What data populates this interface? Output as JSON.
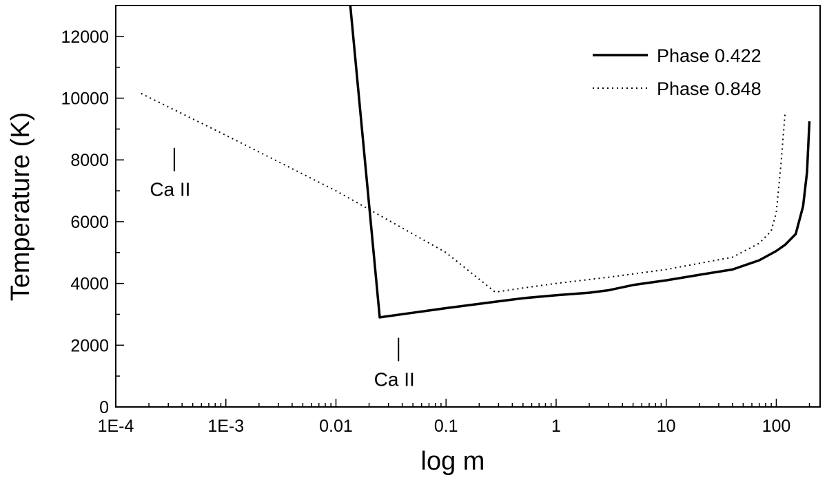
{
  "chart_data": {
    "type": "line",
    "xlabel": "log m",
    "ylabel": "Temperature (K)",
    "x_scale": "log",
    "xlim": [
      0.0001,
      250
    ],
    "ylim": [
      0,
      13000
    ],
    "grid": false,
    "legend_position": "top-right",
    "x_tick_labels": [
      "1E-4",
      "1E-3",
      "0.01",
      "0.1",
      "1",
      "10",
      "100"
    ],
    "x_tick_values": [
      0.0001,
      0.001,
      0.01,
      0.1,
      1,
      10,
      100
    ],
    "y_tick_labels": [
      "0",
      "2000",
      "4000",
      "6000",
      "8000",
      "10000",
      "12000"
    ],
    "y_tick_values": [
      0,
      2000,
      4000,
      6000,
      8000,
      10000,
      12000
    ],
    "series": [
      {
        "name": "Phase 0.422",
        "line_style": "solid",
        "color": "#000000",
        "x": [
          0.0135,
          0.025,
          0.05,
          0.1,
          0.3,
          0.5,
          1,
          2,
          3,
          5,
          10,
          20,
          40,
          70,
          100,
          120,
          150,
          175,
          190,
          200
        ],
        "y": [
          13000,
          2900,
          3050,
          3200,
          3420,
          3520,
          3620,
          3700,
          3780,
          3950,
          4100,
          4280,
          4450,
          4750,
          5050,
          5250,
          5600,
          6500,
          7600,
          9250
        ]
      },
      {
        "name": "Phase 0.848",
        "line_style": "dotted",
        "color": "#000000",
        "x": [
          0.00017,
          0.001,
          0.01,
          0.1,
          0.28,
          0.5,
          1,
          3,
          10,
          40,
          70,
          90,
          100,
          110,
          120
        ],
        "y": [
          10150,
          8800,
          7000,
          5000,
          3720,
          3850,
          4000,
          4200,
          4450,
          4850,
          5300,
          5700,
          6300,
          7800,
          9500
        ]
      }
    ],
    "annotations": [
      {
        "text": "Ca II",
        "x": 0.00034,
        "y": 7900
      },
      {
        "text": "Ca II",
        "x": 0.037,
        "y": 1750
      }
    ]
  }
}
